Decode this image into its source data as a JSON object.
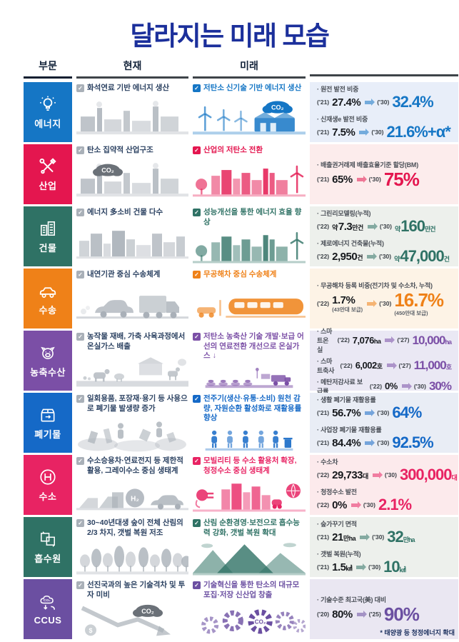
{
  "title": "달라지는 미래 모습",
  "footnote": "* 태양광 등 청정에너지 확대",
  "headers": {
    "sector": "부문",
    "present": "현재",
    "future": "미래"
  },
  "rows": [
    {
      "id": "energy",
      "sector": "에너지",
      "icon": "lightbulb-icon",
      "color": "#1576c5",
      "panel_bg": "#e8eef9",
      "present": "화석연료 기반 에너지 생산",
      "future": "저탄소 신기술 기반 에너지 생산",
      "present_illus": {
        "variant": "factory"
      },
      "future_illus": {
        "variant": "cleanfactory",
        "label": "CO₂"
      },
      "stats": [
        {
          "label": "· 원전 발전 비중",
          "from_year": "('21)",
          "from_value": "27.4%",
          "to_year": "('30)",
          "to_value": "32.4%"
        },
        {
          "label": "· 신재생e 발전 비중",
          "from_year": "('21)",
          "from_value": "7.5%",
          "to_year": "('30)",
          "to_value": "21.6%+α*"
        }
      ]
    },
    {
      "id": "industry",
      "sector": "산업",
      "icon": "tools-icon",
      "color": "#e4164f",
      "panel_bg": "#fcecec",
      "present": "탄소 집약적 산업구조",
      "future": "산업의 저탄소 전환",
      "present_illus": {
        "variant": "factory",
        "label": "CO₂"
      },
      "future_illus": {
        "variant": "cityFuture"
      },
      "stats": [
        {
          "label": "· 배출권거래제 배출효율기준 할당(BM)",
          "from_year": "('21)",
          "from_value": "65%",
          "to_year": "('30)",
          "to_value": "75%"
        }
      ]
    },
    {
      "id": "building",
      "sector": "건물",
      "icon": "building-icon",
      "color": "#2f7265",
      "panel_bg": "#edf0ec",
      "present": "에너지 多소비 건물 다수",
      "future": "성능개선을 통한 에너지 효율 향상",
      "present_illus": {
        "variant": "city"
      },
      "future_illus": {
        "variant": "cityFuture"
      },
      "stats": [
        {
          "label": "· 그린리모델링(누적)",
          "from_year": "('22)",
          "from_prefix": "약",
          "from_value": "7.3",
          "from_unit": "만건",
          "to_year": "('30)",
          "to_prefix": "약",
          "to_value": "160",
          "to_unit": "만건"
        },
        {
          "label": "· 제로에너지 건축물(누적)",
          "from_year": "('22)",
          "from_value": "2,950",
          "from_unit": "건",
          "to_year": "('30)",
          "to_prefix": "약",
          "to_value": "47,000",
          "to_unit": "건"
        }
      ]
    },
    {
      "id": "transport",
      "sector": "수송",
      "icon": "car-icon",
      "color": "#ef8118",
      "panel_bg": "#fdf3e6",
      "present": "내연기관 중심 수송체계",
      "future": "무공해차 중심 수송체계",
      "present_illus": {
        "variant": "vehicles"
      },
      "future_illus": {
        "variant": "transit"
      },
      "stats": [
        {
          "label": "· 무공해차 등록 비중(전기차 및 수소차, 누적)",
          "from_year": "('22)",
          "from_value": "1.7%",
          "from_sub": "(43만대 보급)",
          "to_year": "('30)",
          "to_value": "16.7%",
          "to_sub": "(450만대 보급)"
        }
      ]
    },
    {
      "id": "agriculture",
      "sector": "농축수산",
      "icon": "livestock-icon",
      "color": "#7b4fa6",
      "panel_bg": "#eae8f4",
      "present": "농작물 재배, 가축 사육과정에서 온실가스 배출",
      "future": "저탄소 농축산 기술 개발·보급 어선의 연료전환 개선으로 온실가스 ↓",
      "present_illus": {
        "variant": "farm"
      },
      "future_illus": {
        "variant": "smartfarm"
      },
      "stats": [
        {
          "inline": true,
          "label": "· 스마트온실",
          "from_year": "('22)",
          "from_value": "7,076",
          "from_unit": "ha",
          "to_year": "('27)",
          "to_value": "10,000",
          "to_unit": "ha"
        },
        {
          "inline": true,
          "label": "· 스마트축사",
          "from_year": "('22)",
          "from_value": "6,002",
          "from_unit": "호",
          "to_year": "('27)",
          "to_value": "11,000",
          "to_unit": "호"
        },
        {
          "inline": true,
          "label": "· 메탄저감사료 보급률",
          "from_year": "('22)",
          "from_value": "0%",
          "to_year": "('30)",
          "to_value": "30%"
        }
      ]
    },
    {
      "id": "waste",
      "sector": "폐기물",
      "icon": "recycle-box-icon",
      "color": "#1569c7",
      "panel_bg": "#e9edf5",
      "present": "일회용품, 포장재·용기 등 사용으로 폐기물 발생량 증가",
      "future": "전주기(생산·유통·소비) 원천 감량, 자원순환 활성화로 재활용률 향상",
      "present_illus": {
        "variant": "waste"
      },
      "future_illus": {
        "variant": "people"
      },
      "stats": [
        {
          "label": "· 생활 폐기물 재활용률",
          "from_year": "('21)",
          "from_value": "56.7%",
          "to_year": "('30)",
          "to_value": "64%"
        },
        {
          "label": "· 사업장 폐기물 재활용률",
          "from_year": "('21)",
          "from_value": "84.4%",
          "to_year": "('30)",
          "to_value": "92.5%"
        }
      ]
    },
    {
      "id": "hydrogen",
      "sector": "수소",
      "icon": "hydrogen-icon",
      "color": "#e82363",
      "panel_bg": "#fceaec",
      "present": "수소승용차·연료전지 등 제한적 활용, 그레이수소 중심 생태계",
      "future": "모빌리티 등 수소 활용처 확장, 청정수소 중심 생태계",
      "present_illus": {
        "variant": "hydrogen",
        "label": "H₂"
      },
      "future_illus": {
        "variant": "hydrocity"
      },
      "stats": [
        {
          "label": "· 수소차",
          "from_year": "('22)",
          "from_value": "29,733",
          "from_unit": "대",
          "to_year": "('30)",
          "to_value": "300,000",
          "to_unit": "대"
        },
        {
          "label": "· 청정수소 발전",
          "from_year": "('22)",
          "from_value": "0%",
          "to_year": "('30)",
          "to_value": "2.1%"
        }
      ]
    },
    {
      "id": "sink",
      "sector": "흡수원",
      "icon": "forest-icon",
      "color": "#2f7265",
      "panel_bg": "#edf0ec",
      "present": "30~40년대생 숲이 전체 산림의 2/3 차지, 갯벌 복원 저조",
      "future": "산림 순환경영·보전으로 흡수능력 강화, 갯벌 복원 확대",
      "present_illus": {
        "variant": "forest"
      },
      "future_illus": {
        "variant": "mountains"
      },
      "stats": [
        {
          "label": "· 숲가꾸기 면적",
          "from_year": "('21)",
          "from_value": "21",
          "from_unit": "만ha",
          "to_year": "('30)",
          "to_value": "32",
          "to_unit": "만ha"
        },
        {
          "label": "· 갯벌 복원(누적)",
          "from_year": "('21)",
          "from_value": "1.5",
          "from_unit": "㎢",
          "to_year": "('30)",
          "to_value": "10",
          "to_unit": "㎢"
        }
      ]
    },
    {
      "id": "ccus",
      "sector": "CCUS",
      "icon": "co2-cloud-icon",
      "color": "#6b4fa1",
      "panel_bg": "#eae7f2",
      "present": "선진국과의 높은 기술격차 및 투자 미비",
      "future": "기술혁신을 통한 탄소의 대규모 포집·저장 신산업 창출",
      "present_illus": {
        "variant": "decline",
        "label": "CO₂"
      },
      "future_illus": {
        "variant": "gears",
        "label": "CO₂"
      },
      "stats": [
        {
          "label": "· 기술수준 최고국(美) 대비",
          "from_year": "('20)",
          "from_value": "80%",
          "to_year": "('25)",
          "to_value": "90%"
        }
      ]
    }
  ]
}
